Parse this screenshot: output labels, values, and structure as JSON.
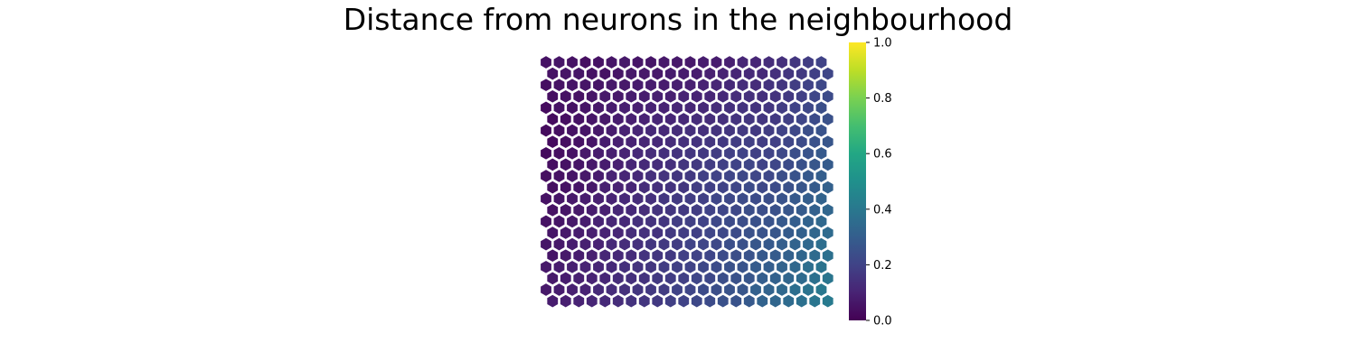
{
  "chart_data": {
    "type": "heatmap",
    "subtype": "hexagonal-grid",
    "title": "Distance from neurons in the neighbourhood",
    "rows": 22,
    "cols": 22,
    "grid": false,
    "colormap": "viridis",
    "colorbar": {
      "position": "right",
      "range": [
        0.0,
        1.0
      ],
      "ticks": [
        0.0,
        0.2,
        0.4,
        0.6,
        0.8,
        1.0
      ],
      "tick_labels": [
        "0.0",
        "0.2",
        "0.4",
        "0.6",
        "0.8",
        "1.0"
      ]
    },
    "values": [
      [
        0.05,
        0.06,
        0.05,
        0.04,
        0.05,
        0.06,
        0.07,
        0.06,
        0.06,
        0.07,
        0.07,
        0.07,
        0.08,
        0.08,
        0.09,
        0.11,
        0.11,
        0.13,
        0.14,
        0.16,
        0.18,
        0.2
      ],
      [
        0.05,
        0.06,
        0.06,
        0.05,
        0.05,
        0.06,
        0.07,
        0.07,
        0.07,
        0.08,
        0.08,
        0.08,
        0.09,
        0.1,
        0.11,
        0.12,
        0.12,
        0.14,
        0.16,
        0.17,
        0.19,
        0.21
      ],
      [
        0.04,
        0.05,
        0.06,
        0.06,
        0.06,
        0.07,
        0.07,
        0.08,
        0.08,
        0.08,
        0.09,
        0.09,
        0.1,
        0.11,
        0.12,
        0.13,
        0.13,
        0.15,
        0.16,
        0.18,
        0.2,
        0.22
      ],
      [
        0.04,
        0.05,
        0.05,
        0.06,
        0.07,
        0.07,
        0.08,
        0.08,
        0.09,
        0.09,
        0.1,
        0.1,
        0.11,
        0.12,
        0.13,
        0.14,
        0.14,
        0.15,
        0.17,
        0.19,
        0.21,
        0.23
      ],
      [
        0.03,
        0.05,
        0.05,
        0.06,
        0.07,
        0.08,
        0.09,
        0.09,
        0.1,
        0.1,
        0.11,
        0.11,
        0.12,
        0.13,
        0.14,
        0.15,
        0.15,
        0.16,
        0.18,
        0.2,
        0.22,
        0.24
      ],
      [
        0.03,
        0.04,
        0.05,
        0.06,
        0.07,
        0.08,
        0.09,
        0.1,
        0.11,
        0.11,
        0.12,
        0.13,
        0.13,
        0.14,
        0.15,
        0.16,
        0.16,
        0.17,
        0.19,
        0.21,
        0.23,
        0.25
      ],
      [
        0.03,
        0.04,
        0.05,
        0.06,
        0.07,
        0.08,
        0.1,
        0.11,
        0.12,
        0.12,
        0.13,
        0.14,
        0.14,
        0.15,
        0.16,
        0.17,
        0.17,
        0.18,
        0.2,
        0.22,
        0.24,
        0.26
      ],
      [
        0.03,
        0.04,
        0.05,
        0.06,
        0.08,
        0.09,
        0.1,
        0.11,
        0.12,
        0.13,
        0.14,
        0.15,
        0.16,
        0.17,
        0.18,
        0.19,
        0.18,
        0.19,
        0.21,
        0.23,
        0.25,
        0.27
      ],
      [
        0.03,
        0.04,
        0.05,
        0.07,
        0.08,
        0.09,
        0.1,
        0.12,
        0.13,
        0.14,
        0.15,
        0.16,
        0.17,
        0.18,
        0.19,
        0.2,
        0.19,
        0.2,
        0.22,
        0.24,
        0.26,
        0.28
      ],
      [
        0.04,
        0.05,
        0.06,
        0.07,
        0.08,
        0.09,
        0.11,
        0.12,
        0.13,
        0.14,
        0.16,
        0.17,
        0.18,
        0.19,
        0.2,
        0.21,
        0.2,
        0.21,
        0.23,
        0.25,
        0.27,
        0.29
      ],
      [
        0.04,
        0.05,
        0.06,
        0.07,
        0.08,
        0.1,
        0.11,
        0.12,
        0.14,
        0.15,
        0.16,
        0.17,
        0.19,
        0.2,
        0.21,
        0.22,
        0.21,
        0.22,
        0.24,
        0.26,
        0.28,
        0.3
      ],
      [
        0.04,
        0.05,
        0.06,
        0.07,
        0.09,
        0.1,
        0.11,
        0.13,
        0.14,
        0.15,
        0.16,
        0.18,
        0.19,
        0.2,
        0.21,
        0.23,
        0.22,
        0.23,
        0.25,
        0.27,
        0.29,
        0.31
      ],
      [
        0.05,
        0.06,
        0.07,
        0.08,
        0.09,
        0.1,
        0.12,
        0.13,
        0.14,
        0.16,
        0.17,
        0.18,
        0.19,
        0.21,
        0.22,
        0.23,
        0.23,
        0.24,
        0.26,
        0.28,
        0.3,
        0.32
      ],
      [
        0.05,
        0.06,
        0.07,
        0.08,
        0.09,
        0.11,
        0.12,
        0.13,
        0.15,
        0.16,
        0.17,
        0.18,
        0.2,
        0.21,
        0.22,
        0.24,
        0.24,
        0.25,
        0.27,
        0.29,
        0.31,
        0.33
      ],
      [
        0.05,
        0.06,
        0.07,
        0.08,
        0.1,
        0.11,
        0.12,
        0.14,
        0.15,
        0.16,
        0.18,
        0.19,
        0.2,
        0.22,
        0.23,
        0.24,
        0.25,
        0.26,
        0.28,
        0.3,
        0.32,
        0.34
      ],
      [
        0.06,
        0.07,
        0.08,
        0.09,
        0.1,
        0.11,
        0.13,
        0.14,
        0.15,
        0.17,
        0.18,
        0.19,
        0.21,
        0.22,
        0.23,
        0.25,
        0.26,
        0.27,
        0.29,
        0.31,
        0.33,
        0.35
      ],
      [
        0.06,
        0.07,
        0.08,
        0.09,
        0.1,
        0.12,
        0.13,
        0.14,
        0.16,
        0.17,
        0.18,
        0.2,
        0.21,
        0.22,
        0.24,
        0.25,
        0.27,
        0.28,
        0.3,
        0.32,
        0.34,
        0.36
      ],
      [
        0.06,
        0.07,
        0.08,
        0.09,
        0.11,
        0.12,
        0.13,
        0.15,
        0.16,
        0.17,
        0.19,
        0.2,
        0.21,
        0.23,
        0.24,
        0.26,
        0.28,
        0.29,
        0.31,
        0.33,
        0.35,
        0.37
      ],
      [
        0.07,
        0.08,
        0.09,
        0.1,
        0.11,
        0.12,
        0.14,
        0.15,
        0.16,
        0.18,
        0.19,
        0.2,
        0.22,
        0.23,
        0.25,
        0.26,
        0.29,
        0.3,
        0.32,
        0.34,
        0.36,
        0.38
      ],
      [
        0.07,
        0.08,
        0.09,
        0.1,
        0.11,
        0.13,
        0.14,
        0.15,
        0.17,
        0.18,
        0.19,
        0.21,
        0.22,
        0.24,
        0.25,
        0.27,
        0.3,
        0.31,
        0.33,
        0.35,
        0.37,
        0.39
      ],
      [
        0.07,
        0.08,
        0.09,
        0.1,
        0.12,
        0.13,
        0.14,
        0.16,
        0.17,
        0.18,
        0.2,
        0.21,
        0.23,
        0.24,
        0.26,
        0.27,
        0.31,
        0.32,
        0.34,
        0.36,
        0.38,
        0.4
      ],
      [
        0.08,
        0.09,
        0.1,
        0.11,
        0.12,
        0.13,
        0.15,
        0.16,
        0.17,
        0.19,
        0.2,
        0.22,
        0.23,
        0.25,
        0.26,
        0.28,
        0.32,
        0.33,
        0.35,
        0.37,
        0.39,
        0.41
      ]
    ]
  }
}
